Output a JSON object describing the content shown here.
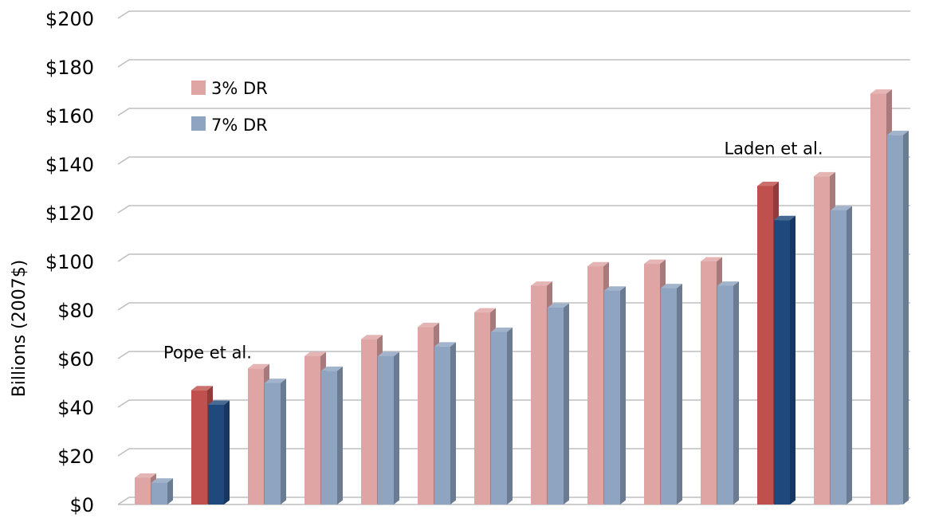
{
  "chart_data": {
    "type": "bar",
    "title": "",
    "xlabel": "",
    "ylabel": "Billions (2007$)",
    "ylim": [
      0,
      200
    ],
    "yticks": [
      0,
      20,
      40,
      60,
      80,
      100,
      120,
      140,
      160,
      180,
      200
    ],
    "ytick_labels": [
      "$0",
      "$20",
      "$40",
      "$60",
      "$80",
      "$100",
      "$120",
      "$140",
      "$160",
      "$180",
      "$200"
    ],
    "categories": [
      "",
      "",
      "",
      "",
      "",
      "",
      "",
      "",
      "",
      "",
      "",
      "",
      "",
      ""
    ],
    "series": [
      {
        "name": "3% DR",
        "values": [
          11,
          47,
          56,
          61,
          68,
          73,
          79,
          90,
          98,
          99,
          100,
          131,
          135,
          169
        ]
      },
      {
        "name": "7% DR",
        "values": [
          9,
          41,
          50,
          55,
          61,
          65,
          71,
          81,
          88,
          89,
          90,
          117,
          121,
          152
        ]
      }
    ],
    "highlighted_indices": [
      1,
      11
    ],
    "annotations": [
      {
        "text": "Pope et al.",
        "category_index": 1
      },
      {
        "text": "Laden et al.",
        "category_index": 11
      }
    ],
    "legend_position": "top-left",
    "grid": true,
    "colors": {
      "series_3pct": "#dfa4a4",
      "series_3pct_highlight": "#c0504d",
      "series_7pct": "#8ea4c1",
      "series_7pct_highlight": "#1f497d",
      "grid": "#bfbfbf"
    }
  }
}
